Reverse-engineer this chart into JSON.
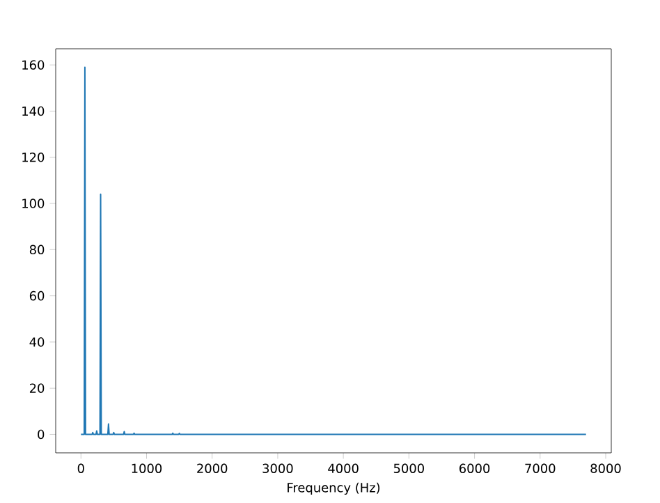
{
  "chart_data": {
    "type": "line",
    "xlabel": "Frequency (Hz)",
    "xlim": [
      -385,
      8085
    ],
    "ylim": [
      -8,
      167
    ],
    "xticks": [
      0,
      1000,
      2000,
      3000,
      4000,
      5000,
      6000,
      7000,
      8000
    ],
    "yticks": [
      0,
      20,
      40,
      60,
      80,
      100,
      120,
      140,
      160
    ],
    "series": [
      {
        "color": "#1f77b4",
        "x": [
          0,
          50,
          60,
          70,
          170,
          180,
          190,
          230,
          240,
          250,
          290,
          300,
          310,
          410,
          420,
          430,
          490,
          500,
          510,
          650,
          660,
          670,
          800,
          810,
          820,
          1390,
          1400,
          1410,
          1490,
          1500,
          1510,
          7700
        ],
        "values": [
          0,
          0,
          159,
          0,
          0,
          0.8,
          0,
          0,
          1.5,
          0,
          0,
          104,
          0,
          0,
          4.5,
          0,
          0,
          0.8,
          0,
          0,
          1.2,
          0,
          0,
          0.5,
          0,
          0,
          0.5,
          0,
          0,
          0.4,
          0,
          0
        ]
      }
    ]
  }
}
